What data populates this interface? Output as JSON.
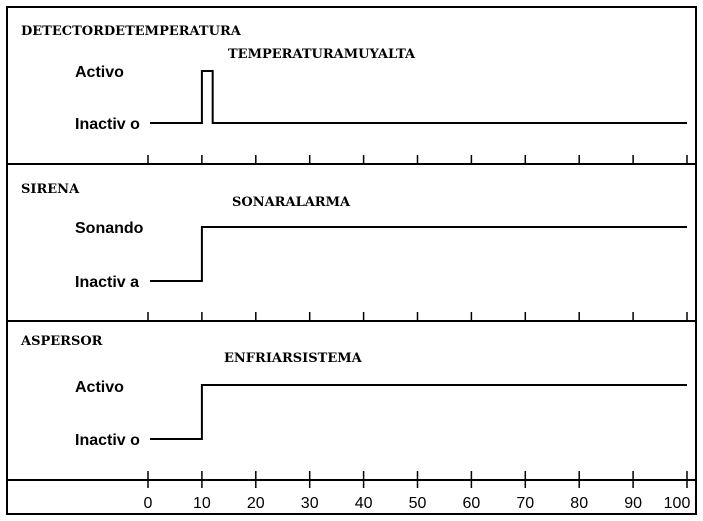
{
  "lanes": [
    {
      "title": "DETECTORDETEMPERATURA",
      "high_label": "Activo",
      "low_label": "Inactiv o",
      "event_label": "TEMPERATURAMUYALTA",
      "signal": [
        [
          0,
          0
        ],
        [
          10,
          0
        ],
        [
          10,
          1
        ],
        [
          12,
          1
        ],
        [
          12,
          0
        ],
        [
          100,
          0
        ]
      ]
    },
    {
      "title": "SIRENA",
      "high_label": "Sonando",
      "low_label": "Inactiv a",
      "event_label": "SONARALARMA",
      "signal": [
        [
          0,
          0
        ],
        [
          10,
          0
        ],
        [
          10,
          1
        ],
        [
          100,
          1
        ]
      ]
    },
    {
      "title": "ASPERSOR",
      "high_label": "Activo",
      "low_label": "Inactiv o",
      "event_label": "ENFRIARSISTEMA",
      "signal": [
        [
          0,
          0
        ],
        [
          10,
          0
        ],
        [
          10,
          1
        ],
        [
          100,
          1
        ]
      ]
    }
  ],
  "time_axis": {
    "min": 0,
    "max": 100,
    "ticks": [
      "0",
      "10",
      "20",
      "30",
      "40",
      "50",
      "60",
      "70",
      "80",
      "90",
      "100"
    ]
  }
}
